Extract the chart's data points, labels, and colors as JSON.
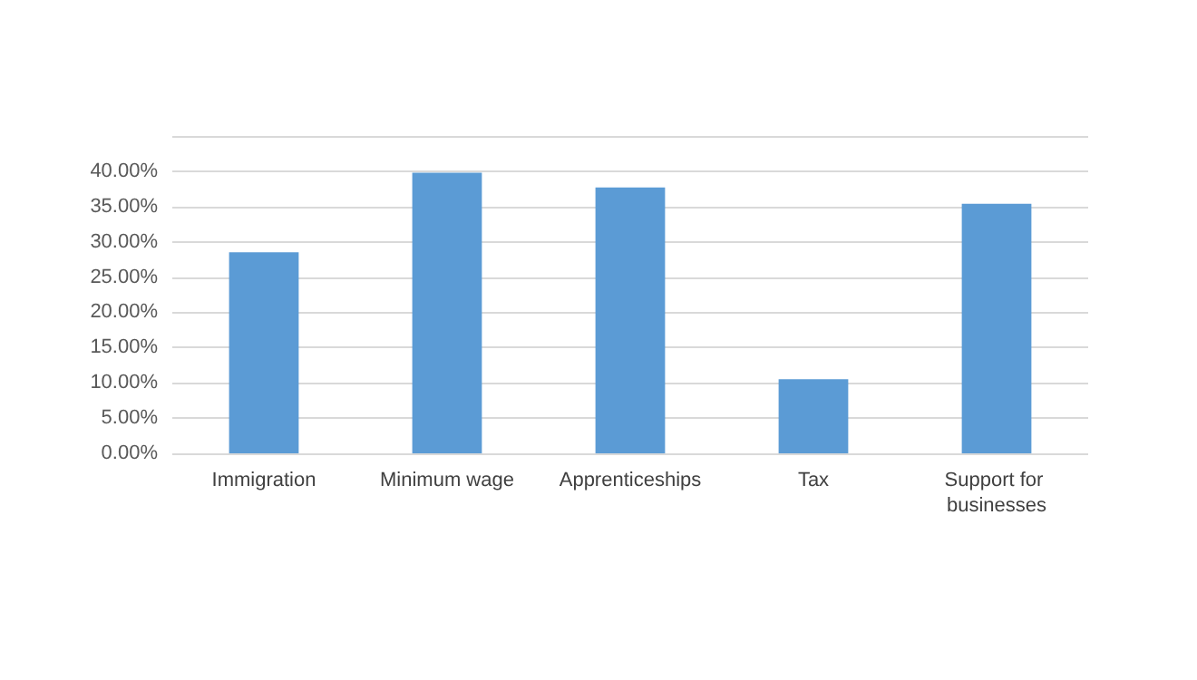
{
  "chart_data": {
    "type": "bar",
    "categories": [
      "Immigration",
      "Minimum wage",
      "Apprenticeships",
      "Tax",
      "Support for businesses"
    ],
    "values": [
      28.5,
      39.8,
      37.7,
      10.5,
      35.4
    ],
    "color": "#5b9bd5",
    "ylim": [
      0,
      45
    ],
    "yticks": [
      {
        "value": 0,
        "label": "0.00%"
      },
      {
        "value": 5,
        "label": "5.00%"
      },
      {
        "value": 10,
        "label": "10.00%"
      },
      {
        "value": 15,
        "label": "15.00%"
      },
      {
        "value": 20,
        "label": "20.00%"
      },
      {
        "value": 25,
        "label": "25.00%"
      },
      {
        "value": 30,
        "label": "30.00%"
      },
      {
        "value": 35,
        "label": "35.00%"
      },
      {
        "value": 40,
        "label": "40.00%"
      },
      {
        "value": 45,
        "label": null
      }
    ],
    "grid": true
  }
}
